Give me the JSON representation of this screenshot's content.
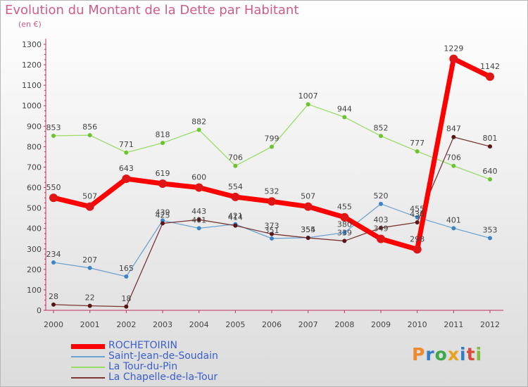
{
  "header": {
    "title": "Evolution du Montant de la Dette par Habitant",
    "subtitle": "(en €)"
  },
  "logo": {
    "text": "Proxiti",
    "colors": [
      "#f08a2a",
      "#2f7cc9",
      "#3ca84a",
      "#e7a21f",
      "#2f7cc9",
      "#d94a3a",
      "#7fbf3b"
    ]
  },
  "chart_data": {
    "type": "line",
    "title": "Evolution du Montant de la Dette par Habitant",
    "ylabel": "(en €)",
    "xlabel": "",
    "x": [
      "2000",
      "2001",
      "2002",
      "2003",
      "2004",
      "2005",
      "2006",
      "2007",
      "2008",
      "2009",
      "2010",
      "2011",
      "2012"
    ],
    "ylim": [
      0,
      1300
    ],
    "yticks": [
      0,
      100,
      200,
      300,
      400,
      500,
      600,
      700,
      800,
      900,
      1000,
      1100,
      1200,
      1300
    ],
    "grid": false,
    "legend_position": "bottom-left",
    "series": [
      {
        "name": "ROCHETOIRIN",
        "color": "#ff0000",
        "marker": "#e01515",
        "values": [
          550,
          507,
          643,
          619,
          600,
          554,
          532,
          507,
          455,
          349,
          298,
          1229,
          1142
        ],
        "labels": [
          "550",
          "507",
          "643",
          "619",
          "600",
          "554",
          "532",
          "507",
          "455",
          "349",
          "298",
          "1229",
          "1142"
        ]
      },
      {
        "name": "Saint-Jean-de-Soudain",
        "color": "#6fa3cf",
        "marker": "#3b84c8",
        "values": [
          234,
          207,
          165,
          439,
          401,
          421,
          351,
          355,
          380,
          520,
          455,
          401,
          353
        ],
        "labels": [
          "234",
          "207",
          "165",
          "439",
          "401",
          "421",
          "351",
          "355",
          "380",
          "520",
          "455",
          "401",
          "353"
        ]
      },
      {
        "name": "La Tour-du-Pin",
        "color": "#99dd66",
        "marker": "#6bc42e",
        "values": [
          853,
          856,
          771,
          818,
          882,
          706,
          799,
          1007,
          944,
          852,
          777,
          706,
          640
        ],
        "labels": [
          "853",
          "856",
          "771",
          "818",
          "882",
          "706",
          "799",
          "1007",
          "944",
          "852",
          "777",
          "706",
          "640"
        ]
      },
      {
        "name": "La Chapelle-de-la-Tour",
        "color": "#7a3535",
        "marker": "#5a1616",
        "values": [
          28,
          22,
          18,
          425,
          443,
          414,
          373,
          354,
          339,
          403,
          430,
          847,
          801
        ],
        "labels": [
          "28",
          "22",
          "18",
          "425",
          "443",
          "414",
          "373",
          "354",
          "339",
          "403",
          "430",
          "847",
          "801"
        ]
      }
    ]
  }
}
